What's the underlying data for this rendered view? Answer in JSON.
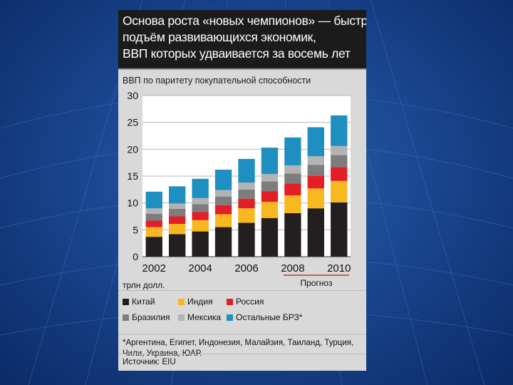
{
  "slide": {
    "title_lines": [
      "Основа роста «новых чемпионов» — быстрый",
      "подъём развивающихся экономик,",
      "ВВП которых удваивается за восемь лет"
    ],
    "subtitle": "ВВП по паритету покупательной способности",
    "unit_label": "трлн долл.",
    "forecast_label": "Прогноз",
    "footnote": "*Аргентина, Египет, Индонезия, Малайзия, Таиланд, Турция, Чили, Украина, ЮАР.",
    "source": "Источник: EIU"
  },
  "chart_data": {
    "type": "bar",
    "stacked": true,
    "title": "",
    "ylabel": "",
    "xlabel": "",
    "ylim": [
      0,
      30
    ],
    "yticks": [
      0,
      5,
      10,
      15,
      20,
      25,
      30
    ],
    "grid": true,
    "x": [
      2002,
      2003,
      2004,
      2005,
      2006,
      2007,
      2008,
      2009,
      2010
    ],
    "x_tick_labels": [
      "2002",
      "2004",
      "2006",
      "2008",
      "2010"
    ],
    "forecast_from": 2008,
    "series": [
      {
        "name": "Китай",
        "color": "#231f20",
        "values": [
          3.7,
          4.2,
          4.7,
          5.5,
          6.3,
          7.2,
          8.1,
          9.0,
          10.1
        ]
      },
      {
        "name": "Индия",
        "color": "#f6b81e",
        "values": [
          1.8,
          1.9,
          2.1,
          2.4,
          2.7,
          3.0,
          3.3,
          3.7,
          4.0
        ]
      },
      {
        "name": "Россия",
        "color": "#e31e26",
        "values": [
          1.2,
          1.4,
          1.5,
          1.7,
          1.8,
          2.0,
          2.2,
          2.4,
          2.6
        ]
      },
      {
        "name": "Бразилия",
        "color": "#7d7d7d",
        "values": [
          1.3,
          1.4,
          1.5,
          1.6,
          1.7,
          1.8,
          1.9,
          2.0,
          2.2
        ]
      },
      {
        "name": "Мексика",
        "color": "#b3b3b3",
        "values": [
          1.0,
          1.0,
          1.1,
          1.2,
          1.3,
          1.4,
          1.5,
          1.6,
          1.7
        ]
      },
      {
        "name": "Остальные БРЗ*",
        "color": "#1f8fc1",
        "values": [
          3.1,
          3.2,
          3.6,
          3.8,
          4.4,
          4.9,
          5.2,
          5.4,
          5.7
        ]
      }
    ],
    "legend_position": "bottom"
  },
  "colors": {
    "background": "#1a4791",
    "card": "#d9d9d9",
    "title_bg": "#1b1b1b",
    "forecast_line": "#c0392b"
  }
}
